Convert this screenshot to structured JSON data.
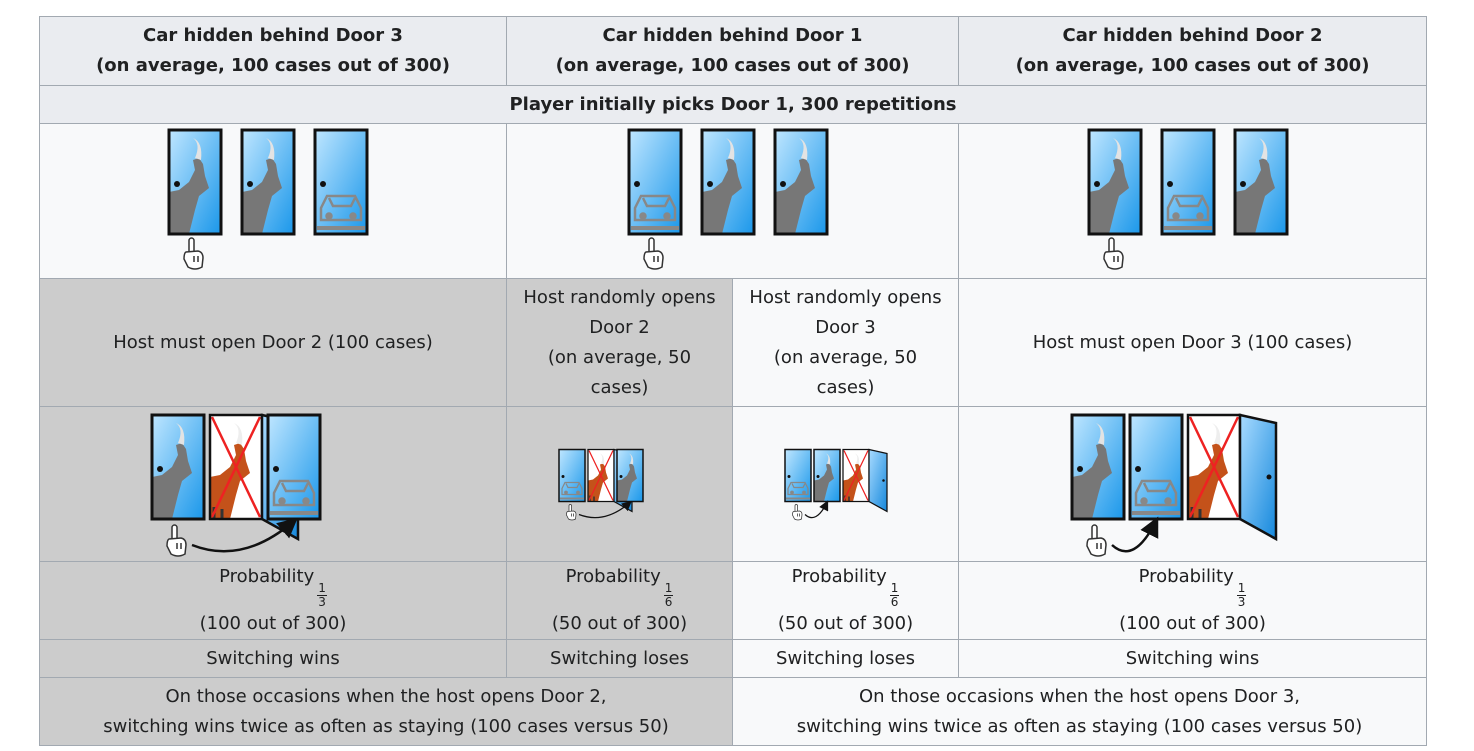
{
  "headers": [
    {
      "line1": "Car hidden behind Door 3",
      "line2": "(on average, 100 cases out of 300)"
    },
    {
      "line1": "Car hidden behind Door 1",
      "line2": "(on average, 100 cases out of 300)"
    },
    {
      "line1": "Car hidden behind Door 2",
      "line2": "(on average, 100 cases out of 300)"
    }
  ],
  "subheader": "Player initially picks Door 1, 300 repetitions",
  "host_actions": [
    {
      "text": "Host must open Door 2 (100 cases)"
    },
    {
      "lines": [
        "Host randomly opens",
        "Door 2",
        "(on average, 50",
        "cases)"
      ]
    },
    {
      "lines": [
        "Host randomly opens",
        "Door 3",
        "(on average, 50",
        "cases)"
      ]
    },
    {
      "text": "Host must open Door 3 (100 cases)"
    }
  ],
  "probabilities": [
    {
      "label": "Probability",
      "num": "1",
      "den": "3",
      "count": "(100 out of 300)"
    },
    {
      "label": "Probability",
      "num": "1",
      "den": "6",
      "count": "(50 out of 300)"
    },
    {
      "label": "Probability",
      "num": "1",
      "den": "6",
      "count": "(50 out of 300)"
    },
    {
      "label": "Probability",
      "num": "1",
      "den": "3",
      "count": "(100 out of 300)"
    }
  ],
  "outcomes": [
    "Switching wins",
    "Switching loses",
    "Switching loses",
    "Switching wins"
  ],
  "summaries": [
    {
      "line1": "On those occasions when the host opens Door 2,",
      "line2": "switching wins twice as often as staying (100 cases versus 50)"
    },
    {
      "line1": "On those occasions when the host opens Door 3,",
      "line2": "switching wins twice as often as staying (100 cases versus 50)"
    }
  ],
  "scenarios": {
    "initial": [
      [
        "goat",
        "goat",
        "car"
      ],
      [
        "car",
        "goat",
        "goat"
      ],
      [
        "goat",
        "car",
        "goat"
      ]
    ],
    "after_host": [
      [
        "goat",
        "open-goat",
        "car"
      ],
      [
        "car",
        "open-goat",
        "goat"
      ],
      [
        "car",
        "goat",
        "open-goat"
      ],
      [
        "goat",
        "car",
        "open-goat"
      ]
    ]
  },
  "colors": {
    "header_bg": "#eaecf0",
    "cell_bg": "#f8f9fa",
    "gray_bg": "#cccccc",
    "border": "#a2a9b1",
    "door_blue": "#44aaee",
    "cross_red": "#ee2222",
    "goat_brown": "#c4521a"
  }
}
